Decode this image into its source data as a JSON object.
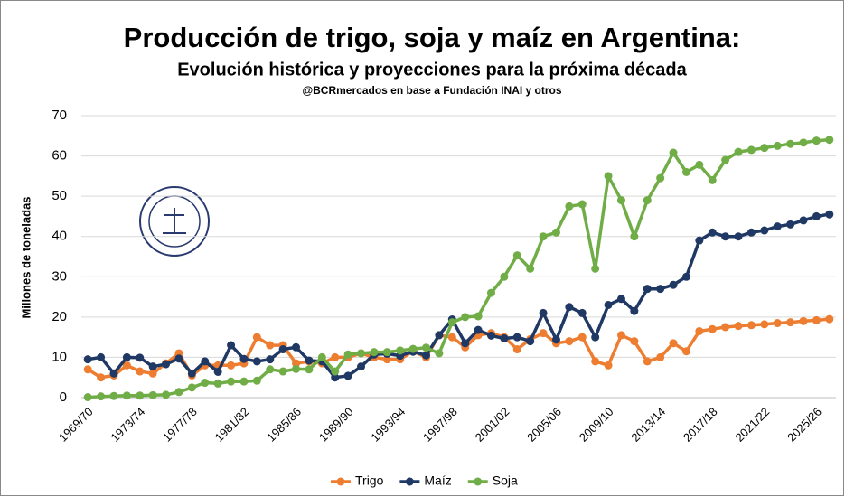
{
  "chart_data": {
    "type": "line",
    "title": "Producción de trigo, soja y maíz en Argentina:",
    "subtitle": "Evolución histórica y proyecciones para la próxima década",
    "source": "@BCRmercados en base a Fundación INAI y otros",
    "y_label": "Millones de toneladas",
    "categories": [
      "1969/70",
      null,
      null,
      null,
      "1973/74",
      null,
      null,
      null,
      "1977/78",
      null,
      null,
      null,
      "1981/82",
      null,
      null,
      null,
      "1985/86",
      null,
      null,
      null,
      "1989/90",
      null,
      null,
      null,
      "1993/94",
      null,
      null,
      null,
      "1997/98",
      null,
      null,
      null,
      "2001/02",
      null,
      null,
      null,
      "2005/06",
      null,
      null,
      null,
      "2009/10",
      null,
      null,
      null,
      "2013/14",
      null,
      null,
      null,
      "2017/18",
      null,
      null,
      null,
      "2021/22",
      null,
      null,
      null,
      "2025/26",
      null
    ],
    "series": [
      {
        "name": "Trigo",
        "color": "#ed7d31",
        "values": [
          7,
          5,
          5.5,
          8,
          6.5,
          6,
          8.5,
          11,
          5.5,
          8,
          8,
          8,
          8.5,
          15,
          13,
          13,
          8.5,
          9,
          8.5,
          10,
          10,
          11,
          10,
          9.5,
          9.5,
          11.5,
          10,
          15.5,
          15,
          12.5,
          15.5,
          16,
          15,
          12,
          14.5,
          16,
          13.5,
          14,
          15,
          9,
          8,
          15.5,
          14,
          9,
          10,
          13.5,
          11.5,
          16.5,
          17,
          17.5,
          17.8,
          18,
          18.2,
          18.5,
          18.7,
          19,
          19.2,
          19.5
        ]
      },
      {
        "name": "Maíz",
        "color": "#1f3864",
        "values": [
          9.5,
          10,
          6,
          10,
          9.9,
          7.7,
          8.3,
          9.7,
          6,
          9,
          6.4,
          13,
          9.6,
          9,
          9.5,
          12,
          12.5,
          9.2,
          9,
          5,
          5.4,
          7.7,
          10.7,
          10.9,
          10.4,
          11.4,
          10.5,
          15.5,
          19.4,
          13.5,
          16.8,
          15.4,
          14.7,
          15,
          14,
          21,
          14.4,
          22.5,
          21,
          15,
          23,
          24.5,
          21.5,
          27,
          27,
          28,
          30,
          39,
          41,
          40,
          40,
          41,
          41.5,
          42.5,
          43,
          44,
          45,
          45.5
        ]
      },
      {
        "name": "Soja",
        "color": "#70ad47",
        "values": [
          0.1,
          0.3,
          0.4,
          0.5,
          0.5,
          0.6,
          0.7,
          1.4,
          2.5,
          3.7,
          3.5,
          4,
          4,
          4.2,
          7,
          6.5,
          7.1,
          7,
          10,
          6.5,
          10.7,
          11,
          11.3,
          11.3,
          11.7,
          12.1,
          12.4,
          11,
          18.7,
          20,
          20.2,
          26,
          30,
          35.3,
          32,
          40,
          41,
          47.5,
          48,
          32,
          55,
          49,
          40,
          49,
          54.5,
          60.8,
          56,
          57.8,
          54,
          59,
          61,
          61.5,
          62,
          62.5,
          63,
          63.3,
          63.8,
          64
        ]
      }
    ],
    "ylim": [
      0,
      70
    ],
    "yticks": [
      0,
      10,
      20,
      30,
      40,
      50,
      60,
      70
    ],
    "grid": true,
    "legend": "bottom"
  }
}
